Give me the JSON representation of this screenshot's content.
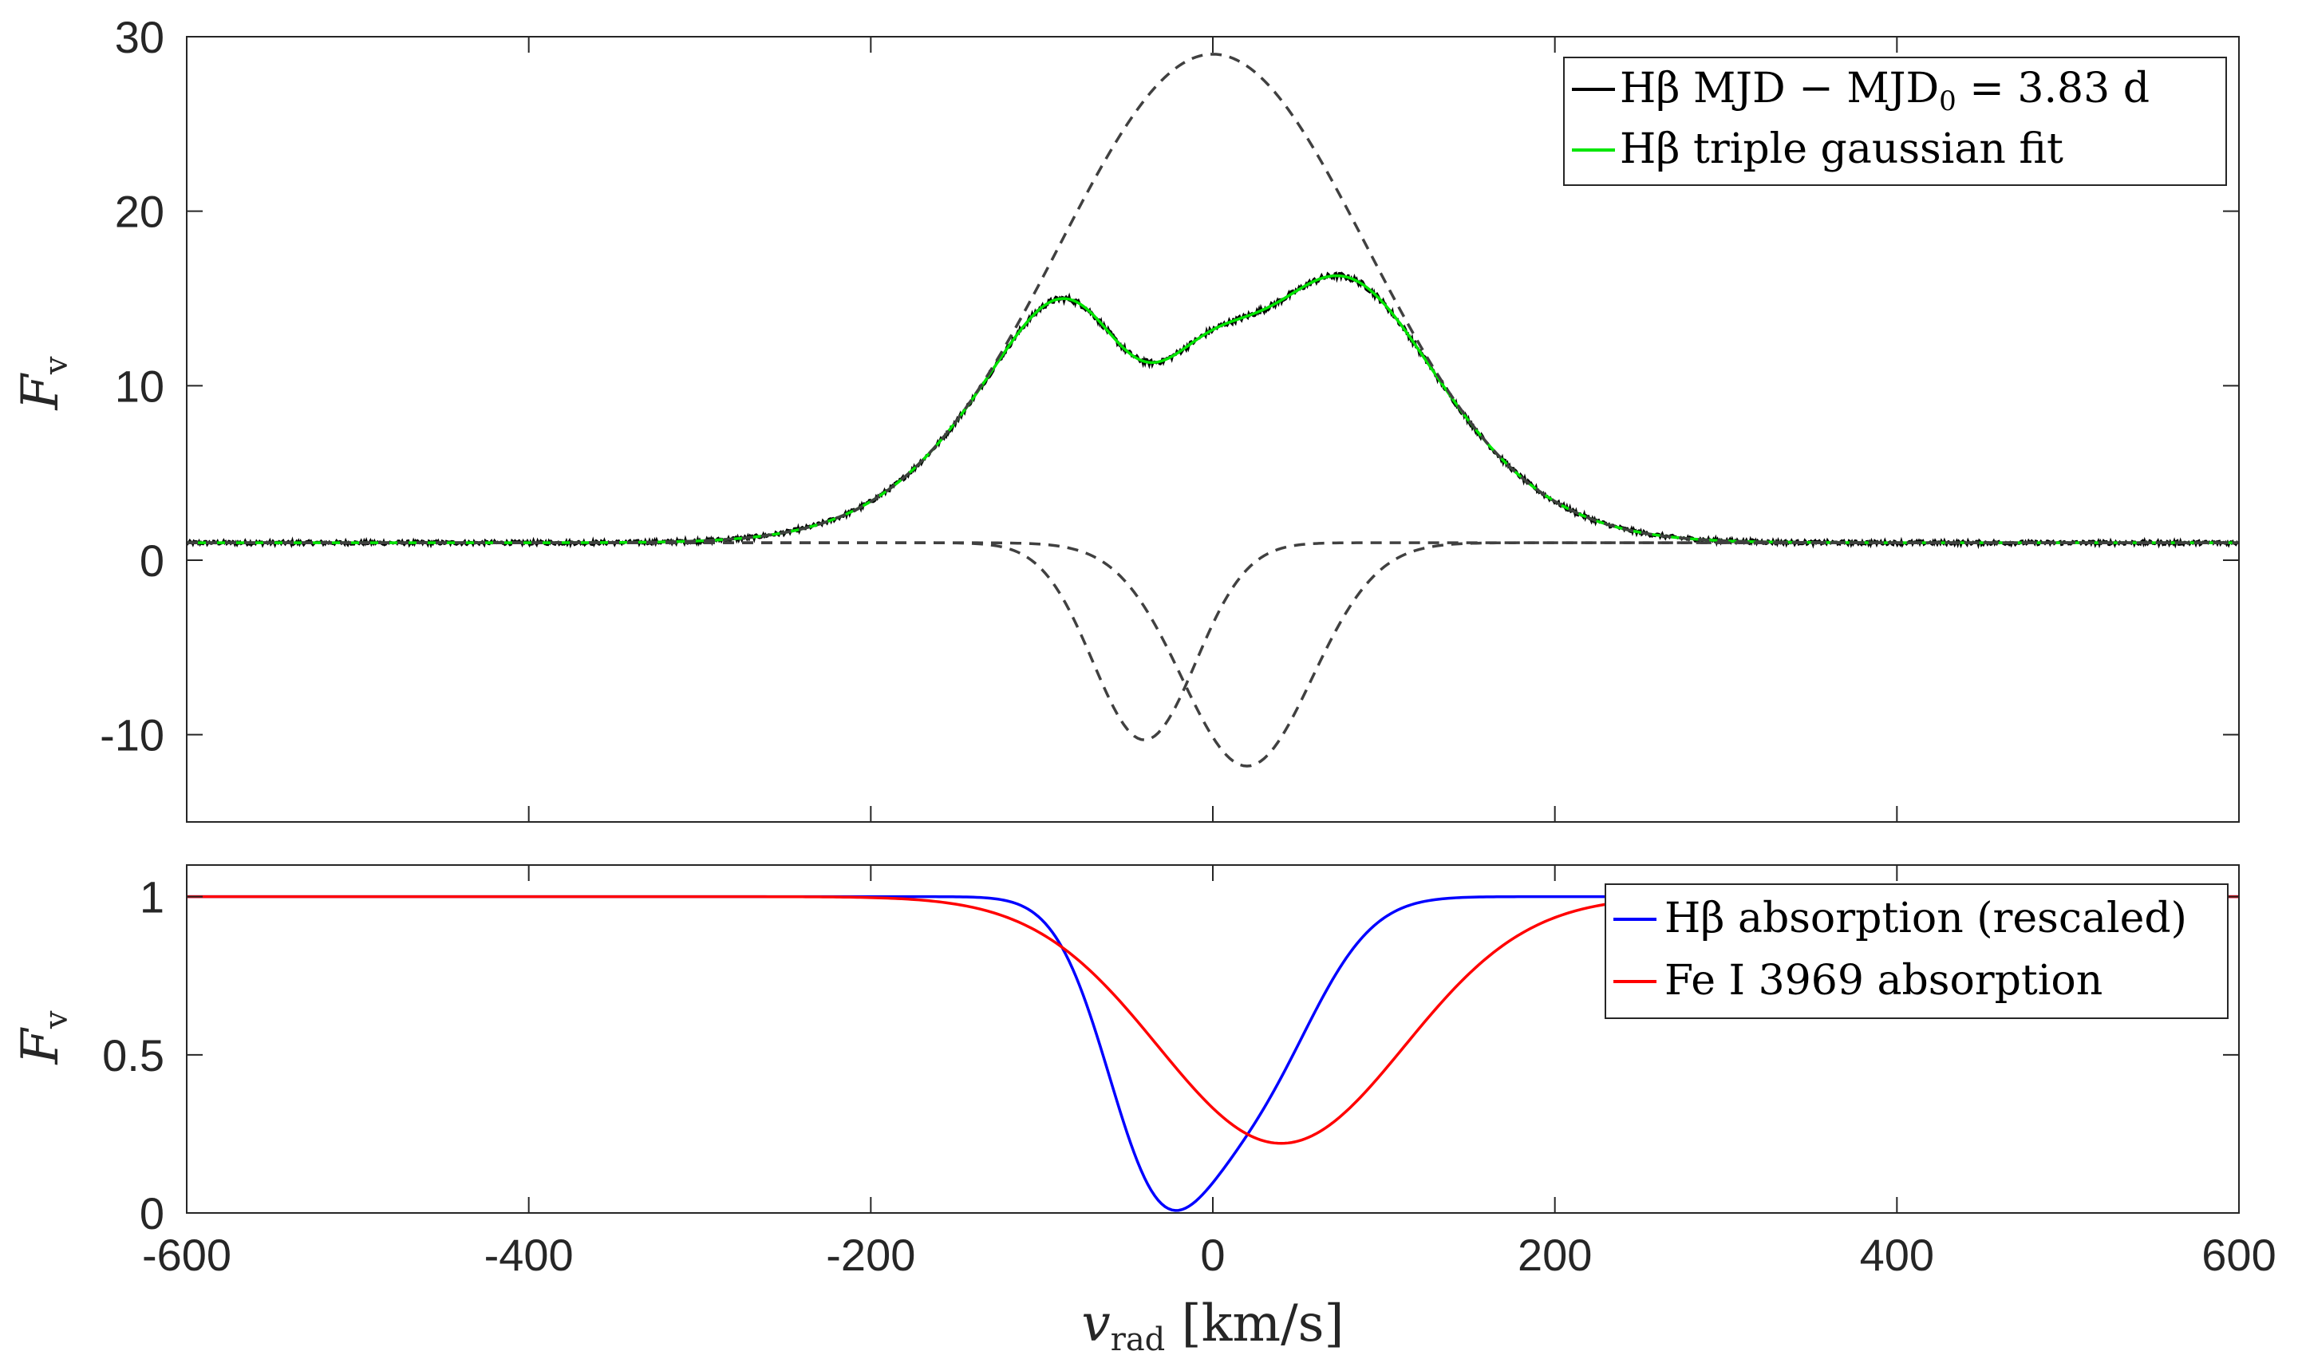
{
  "chart_data": [
    {
      "type": "line",
      "panel": "top",
      "ylabel": "F",
      "ylabel_sub": "v",
      "xlim": [
        -600,
        600
      ],
      "ylim": [
        -15,
        30
      ],
      "xticks": [
        "-600",
        "-400",
        "-200",
        "0",
        "200",
        "400",
        "600"
      ],
      "xtick_values": [
        -600,
        -400,
        -200,
        0,
        200,
        400,
        600
      ],
      "yticks": [
        "-10",
        "0",
        "10",
        "20",
        "30"
      ],
      "ytick_values": [
        -10,
        0,
        10,
        20,
        30
      ],
      "continuum": 1.0,
      "components": [
        {
          "name": "emission gaussian",
          "amplitude": 28,
          "center": 0,
          "sigma": 90
        },
        {
          "name": "absorption gaussian 1",
          "amplitude": -11.3,
          "center": -40,
          "sigma": 30
        },
        {
          "name": "absorption gaussian 2",
          "amplitude": -12.8,
          "center": 20,
          "sigma": 38
        }
      ],
      "series": [
        {
          "name": "Hβ MJD − MJD0 = 3.83 d",
          "legend_main": "Hβ MJD − MJD",
          "legend_sub": "0",
          "legend_tail": " = 3.83 d",
          "color": "#000000",
          "style": "solid",
          "noise": 0.12
        },
        {
          "name": "Hβ triple gaussian fit",
          "legend": "Hβ triple gaussian fit",
          "color": "#00e600",
          "style": "solid"
        },
        {
          "name": "gaussian components",
          "color": "#404040",
          "style": "dashed"
        }
      ],
      "legend_position": "top-right"
    },
    {
      "type": "line",
      "panel": "bottom",
      "ylabel": "F",
      "ylabel_sub": "v",
      "xlabel": "v",
      "xlabel_sub": "rad",
      "xlabel_unit": " [km/s]",
      "xlim": [
        -600,
        600
      ],
      "ylim": [
        0,
        1.1
      ],
      "xticks": [
        "-600",
        "-400",
        "-200",
        "0",
        "200",
        "400",
        "600"
      ],
      "xtick_values": [
        -600,
        -400,
        -200,
        0,
        200,
        400,
        600
      ],
      "yticks": [
        "0",
        "0.5",
        "1"
      ],
      "ytick_values": [
        0,
        0.5,
        1
      ],
      "series": [
        {
          "name": "Hβ absorption (rescaled)",
          "legend": "Hβ absorption (rescaled)",
          "color": "#0000ff",
          "components": [
            {
              "amplitude": -0.72,
              "center": -35,
              "sigma": 30
            },
            {
              "amplitude": -0.62,
              "center": 20,
              "sigma": 38
            }
          ]
        },
        {
          "name": "Fe I 3969 absorption",
          "legend": "Fe I 3969 absorption",
          "color": "#ff0000",
          "components": [
            {
              "amplitude": -0.78,
              "center": 40,
              "sigma": 72
            }
          ]
        }
      ],
      "legend_position": "top-right"
    }
  ]
}
